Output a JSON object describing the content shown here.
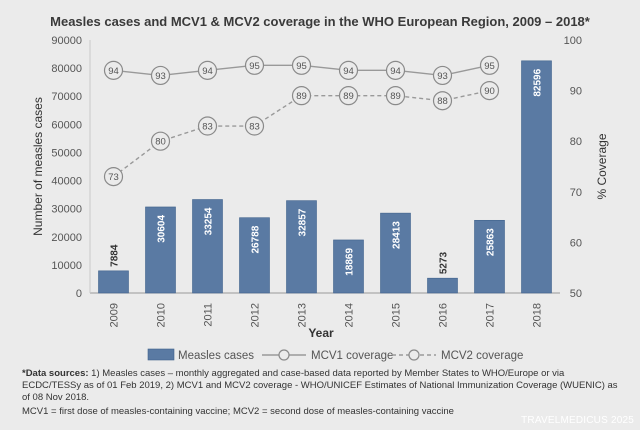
{
  "chart_data": {
    "type": "bar",
    "title": "Measles cases and MCV1 & MCV2 coverage in the WHO European Region, 2009 – 2018*",
    "xlabel": "Year",
    "ylabel": "Number of measles cases",
    "y2label": "% Coverage",
    "ylim": [
      0,
      90000
    ],
    "y2lim": [
      50,
      100
    ],
    "yticks": [
      "0",
      "10000",
      "20000",
      "30000",
      "40000",
      "50000",
      "60000",
      "70000",
      "80000",
      "90000"
    ],
    "y2ticks": [
      "50",
      "60",
      "70",
      "80",
      "90",
      "100"
    ],
    "categories": [
      "2009",
      "2010",
      "2011",
      "2012",
      "2013",
      "2014",
      "2015",
      "2016",
      "2017",
      "2018"
    ],
    "series": [
      {
        "name": "Measles cases",
        "kind": "bar",
        "axis": "left",
        "values": [
          7884,
          30604,
          33254,
          26788,
          32857,
          18869,
          28413,
          5273,
          25863,
          82596
        ],
        "labels": [
          "7884",
          "30604",
          "33254",
          "26788",
          "32857",
          "18869",
          "28413",
          "5273",
          "25863",
          "82596"
        ]
      },
      {
        "name": "MCV1 coverage",
        "kind": "line-solid",
        "axis": "right",
        "values": [
          94,
          93,
          94,
          95,
          95,
          94,
          94,
          93,
          95,
          null
        ],
        "labels": [
          "94",
          "93",
          "94",
          "95",
          "95",
          "94",
          "94",
          "93",
          "95",
          ""
        ]
      },
      {
        "name": "MCV2 coverage",
        "kind": "line-dashed",
        "axis": "right",
        "values": [
          73,
          80,
          83,
          83,
          89,
          89,
          89,
          88,
          90,
          null
        ],
        "labels": [
          "73",
          "80",
          "83",
          "83",
          "89",
          "89",
          "89",
          "88",
          "90",
          ""
        ]
      }
    ],
    "legend_position": "bottom",
    "grid": false
  },
  "colors": {
    "bar_fill": "#5a7aa3",
    "bar_stroke": "#40628c",
    "line": "#999999",
    "marker_fill": "#ebebeb",
    "marker_stroke": "#8a8a8a"
  },
  "notes": {
    "sources_label": "*Data sources:",
    "sources_text": " 1) Measles cases – monthly aggregated and case-based data reported by Member States to WHO/Europe or via ECDC/TESSy as of 01 Feb 2019, 2) MCV1 and MCV2 coverage - WHO/UNICEF Estimates of National Immunization Coverage (WUENIC) as of 08 Nov 2018.",
    "mcv_definition": "MCV1 = first dose of measles-containing vaccine; MCV2 = second dose of measles-containing vaccine"
  },
  "watermark": "TRAVELMEDICUS 2025"
}
